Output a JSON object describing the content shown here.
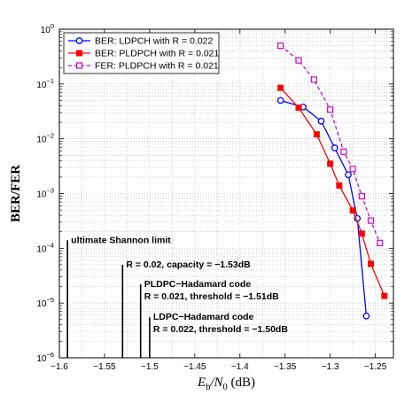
{
  "chart_data": {
    "type": "line",
    "xlabel": "E_b/N_0 (dB)",
    "xlabel_parts": {
      "main": "E",
      "sub1": "b",
      "sep": "/N",
      "sub2": "0",
      "unit": " (dB)"
    },
    "ylabel": "BER/FER",
    "xlim": [
      -1.6,
      -1.23
    ],
    "ylim": [
      1e-06,
      1
    ],
    "yscale": "log",
    "grid": true,
    "legend_position": "top-left",
    "x_ticks": [
      {
        "value": -1.6,
        "label": "−1.6"
      },
      {
        "value": -1.55,
        "label": "−1.55"
      },
      {
        "value": -1.5,
        "label": "−1.5"
      },
      {
        "value": -1.45,
        "label": "−1.45"
      },
      {
        "value": -1.4,
        "label": "−1.4"
      },
      {
        "value": -1.35,
        "label": "−1.35"
      },
      {
        "value": -1.3,
        "label": "−1.3"
      },
      {
        "value": -1.25,
        "label": "−1.25"
      }
    ],
    "y_ticks": [
      {
        "exp": 0,
        "base": "10",
        "sup": "0"
      },
      {
        "exp": -1,
        "base": "10",
        "sup": "−1"
      },
      {
        "exp": -2,
        "base": "10",
        "sup": "−2"
      },
      {
        "exp": -3,
        "base": "10",
        "sup": "−3"
      },
      {
        "exp": -4,
        "base": "10",
        "sup": "−4"
      },
      {
        "exp": -5,
        "base": "10",
        "sup": "−5"
      },
      {
        "exp": -6,
        "base": "10",
        "sup": "−6"
      }
    ],
    "series": [
      {
        "name": "BER: LDPCH with R = 0.022",
        "color": "#0000ff",
        "line_style": "solid",
        "marker": "circle",
        "x": [
          -1.355,
          -1.33,
          -1.31,
          -1.295,
          -1.28,
          -1.27,
          -1.26
        ],
        "y": [
          0.05,
          0.038,
          0.021,
          0.0068,
          0.0022,
          0.00035,
          5.8e-06
        ]
      },
      {
        "name": "BER: PLDPCH with R = 0.021",
        "color": "#ff0000",
        "line_style": "solid",
        "marker": "square",
        "x": [
          -1.355,
          -1.335,
          -1.315,
          -1.3,
          -1.29,
          -1.275,
          -1.265,
          -1.255,
          -1.24
        ],
        "y": [
          0.085,
          0.037,
          0.012,
          0.0035,
          0.0014,
          0.00049,
          0.000185,
          5.2e-05,
          1.35e-05
        ]
      },
      {
        "name": "FER: PLDPCH with R = 0.021",
        "color": "#cc00cc",
        "line_style": "dashed",
        "marker": "square-open",
        "x": [
          -1.355,
          -1.335,
          -1.318,
          -1.3,
          -1.285,
          -1.275,
          -1.265,
          -1.255,
          -1.245
        ],
        "y": [
          0.5,
          0.27,
          0.12,
          0.034,
          0.0058,
          0.0028,
          0.00089,
          0.00032,
          0.000125
        ]
      }
    ],
    "annotations": [
      {
        "x": -1.591,
        "y_top": 0.00014,
        "lines": [
          "ultimate Shannon limit"
        ]
      },
      {
        "x": -1.53,
        "y_top": 5e-05,
        "lines": [
          "R = 0.02, capacity = −1.53dB"
        ]
      },
      {
        "x": -1.51,
        "y_top": 2.2e-05,
        "lines": [
          "PLDPC−Hadamard code",
          "R = 0.021, threshold = −1.51dB"
        ]
      },
      {
        "x": -1.5,
        "y_top": 5.5e-06,
        "lines": [
          "LDPC−Hadamard code",
          "R = 0.022, threshold = −1.50dB"
        ]
      }
    ]
  }
}
